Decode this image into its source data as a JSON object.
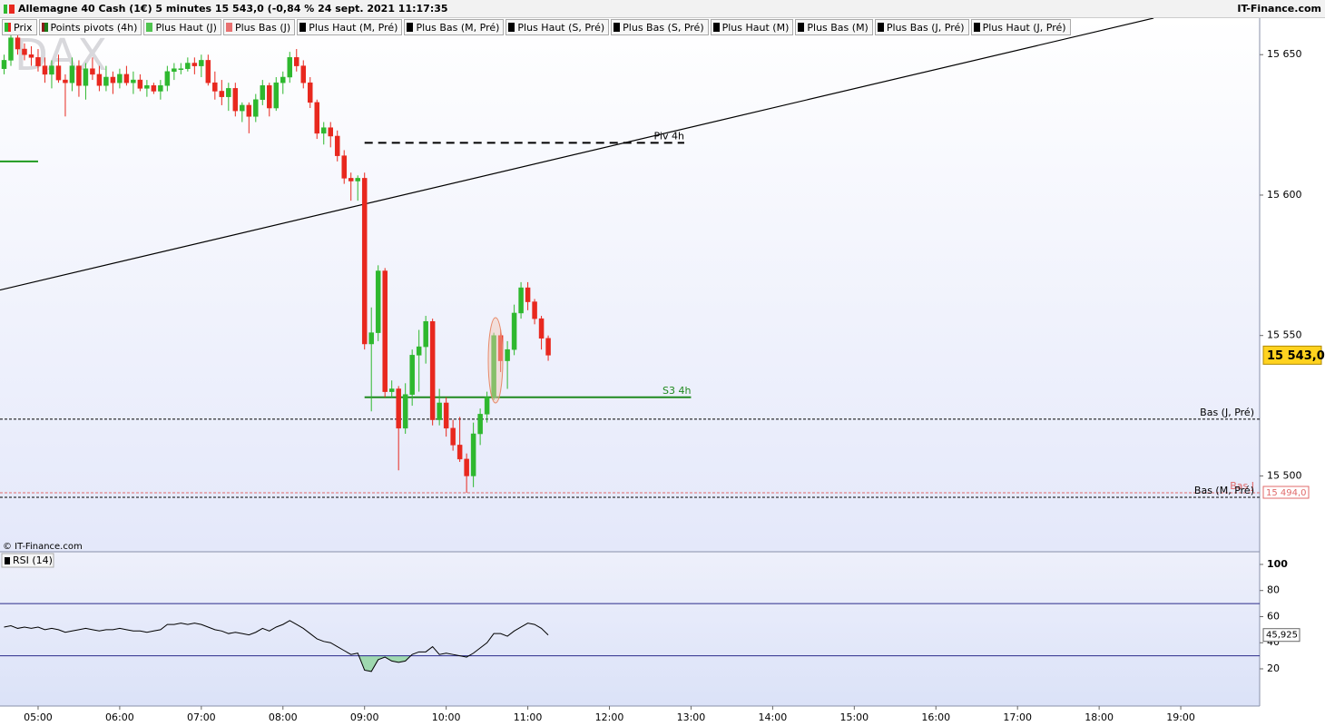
{
  "header": {
    "title": "Allemagne 40 Cash (1€) 5 minutes 15 543,0 (-0,84 % 24 sept. 2021 11:17:35",
    "brand": "IT-Finance.com"
  },
  "legend": [
    {
      "name": "Prix",
      "colors": [
        "#2eb82e",
        "#e8281e"
      ]
    },
    {
      "name": "Points pivots (4h)",
      "colors": [
        "#8b1a1a",
        "#1a7a1a"
      ]
    },
    {
      "name": "Plus Haut (J)",
      "colors": [
        "#4fc44f"
      ]
    },
    {
      "name": "Plus Bas (J)",
      "colors": [
        "#e87070"
      ]
    },
    {
      "name": "Plus Haut (M, Pré)",
      "colors": [
        "#000000"
      ]
    },
    {
      "name": "Plus Bas (M, Pré)",
      "colors": [
        "#000000"
      ]
    },
    {
      "name": "Plus Haut (S, Pré)",
      "colors": [
        "#000000"
      ]
    },
    {
      "name": "Plus Bas (S, Pré)",
      "colors": [
        "#000000"
      ]
    },
    {
      "name": "Plus Haut (M)",
      "colors": [
        "#000000"
      ]
    },
    {
      "name": "Plus Bas (M)",
      "colors": [
        "#000000"
      ]
    },
    {
      "name": "Plus Bas (J, Pré)",
      "colors": [
        "#000000"
      ]
    },
    {
      "name": "Plus Haut (J, Pré)",
      "colors": [
        "#000000"
      ]
    }
  ],
  "chart_data": [
    {
      "type": "candlestick",
      "watermark": "DAX",
      "credit": "© IT-Finance.com",
      "up_color": "#2eb82e",
      "down_color": "#e8281e",
      "x": [
        "04:35",
        "04:40",
        "04:45",
        "04:50",
        "04:55",
        "05:00",
        "05:05",
        "05:10",
        "05:15",
        "05:20",
        "05:25",
        "05:30",
        "05:35",
        "05:40",
        "05:45",
        "05:50",
        "05:55",
        "06:00",
        "06:05",
        "06:10",
        "06:15",
        "06:20",
        "06:25",
        "06:30",
        "06:35",
        "06:40",
        "06:45",
        "06:50",
        "06:55",
        "07:00",
        "07:05",
        "07:10",
        "07:15",
        "07:20",
        "07:25",
        "07:30",
        "07:35",
        "07:40",
        "07:45",
        "07:50",
        "07:55",
        "08:00",
        "08:05",
        "08:10",
        "08:15",
        "08:20",
        "08:25",
        "08:30",
        "08:35",
        "08:40",
        "08:45",
        "08:50",
        "08:55",
        "09:00",
        "09:05",
        "09:10",
        "09:15",
        "09:20",
        "09:25",
        "09:30",
        "09:35",
        "09:40",
        "09:45",
        "09:50",
        "09:55",
        "10:00",
        "10:05",
        "10:10",
        "10:15",
        "10:20",
        "10:25",
        "10:30",
        "10:35",
        "10:40",
        "10:45",
        "10:50",
        "10:55",
        "11:00",
        "11:05",
        "11:10",
        "11:15"
      ],
      "open": [
        15645,
        15648,
        15656,
        15652,
        15650,
        15649,
        15646,
        15643,
        15646,
        15641,
        15640,
        15646,
        15639,
        15645,
        15643,
        15639,
        15642,
        15640,
        15643,
        15640,
        15641,
        15638,
        15639,
        15637,
        15639,
        15644,
        15645,
        15645,
        15647,
        15646,
        15648,
        15640,
        15637,
        15635,
        15638,
        15630,
        15632,
        15628,
        15634,
        15639,
        15631,
        15640,
        15642,
        15649,
        15646,
        15640,
        15633,
        15622,
        15624,
        15621,
        15614,
        15606,
        15605,
        15606,
        15547,
        15551,
        15573,
        15530,
        15531,
        15517,
        15529,
        15543,
        15546,
        15555,
        15520,
        15526,
        15517,
        15511,
        15506,
        15500,
        15515,
        15522,
        15528,
        15550,
        15541,
        15545,
        15558,
        15567,
        15562,
        15556,
        15549
      ],
      "high": [
        15650,
        15660,
        15658,
        15654,
        15653,
        15652,
        15649,
        15648,
        15650,
        15643,
        15649,
        15648,
        15647,
        15649,
        15646,
        15646,
        15644,
        15645,
        15646,
        15644,
        15643,
        15641,
        15640,
        15641,
        15646,
        15647,
        15647,
        15649,
        15649,
        15650,
        15650,
        15644,
        15641,
        15640,
        15640,
        15633,
        15633,
        15636,
        15641,
        15640,
        15642,
        15644,
        15651,
        15652,
        15648,
        15642,
        15634,
        15626,
        15626,
        15623,
        15616,
        15608,
        15607,
        15608,
        15560,
        15575,
        15574,
        15534,
        15532,
        15533,
        15545,
        15552,
        15557,
        15556,
        15531,
        15528,
        15520,
        15521,
        15508,
        15519,
        15524,
        15530,
        15551,
        15552,
        15548,
        15561,
        15569,
        15569,
        15563,
        15557,
        15550
      ],
      "low": [
        15643,
        15646,
        15650,
        15648,
        15646,
        15644,
        15640,
        15638,
        15640,
        15628,
        15637,
        15635,
        15634,
        15641,
        15637,
        15637,
        15636,
        15638,
        15639,
        15636,
        15637,
        15635,
        15636,
        15634,
        15637,
        15641,
        15643,
        15644,
        15643,
        15642,
        15639,
        15634,
        15632,
        15630,
        15628,
        15626,
        15622,
        15626,
        15632,
        15628,
        15630,
        15636,
        15640,
        15644,
        15638,
        15631,
        15620,
        15618,
        15617,
        15612,
        15604,
        15598,
        15598,
        15545,
        15523,
        15548,
        15528,
        15528,
        15502,
        15515,
        15525,
        15530,
        15540,
        15518,
        15518,
        15514,
        15509,
        15505,
        15494,
        15496,
        15511,
        15519,
        15527,
        15537,
        15531,
        15543,
        15556,
        15559,
        15554,
        15545,
        15541
      ],
      "close": [
        15648,
        15656,
        15652,
        15650,
        15649,
        15646,
        15643,
        15646,
        15641,
        15640,
        15646,
        15639,
        15645,
        15643,
        15639,
        15642,
        15640,
        15643,
        15640,
        15641,
        15638,
        15639,
        15637,
        15639,
        15644,
        15645,
        15645,
        15647,
        15646,
        15648,
        15640,
        15637,
        15635,
        15638,
        15630,
        15632,
        15628,
        15634,
        15639,
        15631,
        15640,
        15642,
        15649,
        15646,
        15640,
        15633,
        15622,
        15624,
        15621,
        15614,
        15606,
        15605,
        15606,
        15547,
        15551,
        15573,
        15530,
        15531,
        15517,
        15529,
        15543,
        15546,
        15555,
        15520,
        15526,
        15517,
        15511,
        15506,
        15500,
        15515,
        15522,
        15528,
        15550,
        15541,
        15545,
        15558,
        15567,
        15562,
        15556,
        15549,
        15543
      ],
      "xlim": [
        "04:32",
        "19:58"
      ],
      "xticks": [
        "05:00",
        "06:00",
        "07:00",
        "08:00",
        "09:00",
        "10:00",
        "11:00",
        "12:00",
        "13:00",
        "14:00",
        "15:00",
        "16:00",
        "17:00",
        "18:00",
        "19:00"
      ],
      "ylim": [
        15473,
        15663
      ],
      "yticks": [
        {
          "value": 15500,
          "label": "15 500"
        },
        {
          "value": 15550,
          "label": "15 550"
        },
        {
          "value": 15600,
          "label": "15 600"
        },
        {
          "value": 15650,
          "label": "15 650"
        }
      ],
      "last_value": 15543,
      "last_value_label": "15 543,0",
      "trendline": {
        "x": [
          "04:32",
          "18:40"
        ],
        "values": [
          15566.2,
          15663
        ],
        "color": "#000000"
      },
      "levels": [
        {
          "value": 15612,
          "from": "04:32",
          "to": "05:00",
          "color": "#1f9a1f",
          "line_style": "solid"
        },
        {
          "label": "Piv 4h",
          "value": 15618.6,
          "from": "09:00",
          "to": "12:55",
          "color": "#000000",
          "line_style": "dashed"
        },
        {
          "label": "S3 4h",
          "value": 15528,
          "from": "09:00",
          "to": "13:00",
          "color": "#1f8a1f",
          "line_style": "solid"
        },
        {
          "label": "Bas (J, Pré)",
          "value": 15520.2,
          "color": "#000000",
          "line_style": "dotted"
        },
        {
          "label": "Bas J",
          "value": 15494,
          "value_label": "15 494,0",
          "color": "#e06a6a",
          "line_style": "dotted"
        },
        {
          "label": "Bas (M, Pré)",
          "value": 15492.4,
          "color": "#000000",
          "line_style": "dotted"
        }
      ]
    },
    {
      "type": "line",
      "name": "RSI (14)",
      "color": "#000000",
      "fill_color": "#9fd8b0",
      "x": [
        "04:35",
        "04:40",
        "04:45",
        "04:50",
        "04:55",
        "05:00",
        "05:05",
        "05:10",
        "05:15",
        "05:20",
        "05:25",
        "05:30",
        "05:35",
        "05:40",
        "05:45",
        "05:50",
        "05:55",
        "06:00",
        "06:05",
        "06:10",
        "06:15",
        "06:20",
        "06:25",
        "06:30",
        "06:35",
        "06:40",
        "06:45",
        "06:50",
        "06:55",
        "07:00",
        "07:05",
        "07:10",
        "07:15",
        "07:20",
        "07:25",
        "07:30",
        "07:35",
        "07:40",
        "07:45",
        "07:50",
        "07:55",
        "08:00",
        "08:05",
        "08:10",
        "08:15",
        "08:20",
        "08:25",
        "08:30",
        "08:35",
        "08:40",
        "08:45",
        "08:50",
        "08:55",
        "09:00",
        "09:05",
        "09:10",
        "09:15",
        "09:20",
        "09:25",
        "09:30",
        "09:35",
        "09:40",
        "09:45",
        "09:50",
        "09:55",
        "10:00",
        "10:05",
        "10:10",
        "10:15",
        "10:20",
        "10:25",
        "10:30",
        "10:35",
        "10:40",
        "10:45",
        "10:50",
        "10:55",
        "11:00",
        "11:05",
        "11:10",
        "11:15"
      ],
      "values": [
        52,
        53,
        51,
        52,
        51,
        52,
        50,
        51,
        50,
        48,
        49,
        50,
        51,
        50,
        49,
        50,
        50,
        51,
        50,
        49,
        49,
        48,
        49,
        50,
        54,
        54,
        55,
        54,
        55,
        54,
        52,
        50,
        49,
        47,
        48,
        47,
        46,
        48,
        51,
        49,
        52,
        54,
        57,
        54,
        51,
        47,
        43,
        41,
        40,
        37,
        34,
        31,
        32,
        19,
        18,
        27,
        29,
        26,
        25,
        26,
        31,
        33,
        33,
        37,
        31,
        32,
        31,
        30,
        29,
        32,
        36,
        40,
        47,
        47,
        45,
        49,
        52,
        55,
        54,
        51,
        45.925
      ],
      "last_value_label": "45,925",
      "ylim": [
        -8.5,
        109.7
      ],
      "yticks": [
        20,
        40,
        60,
        80,
        100
      ],
      "bands": [
        30,
        70
      ],
      "band_color": "#2a2a8a"
    }
  ]
}
